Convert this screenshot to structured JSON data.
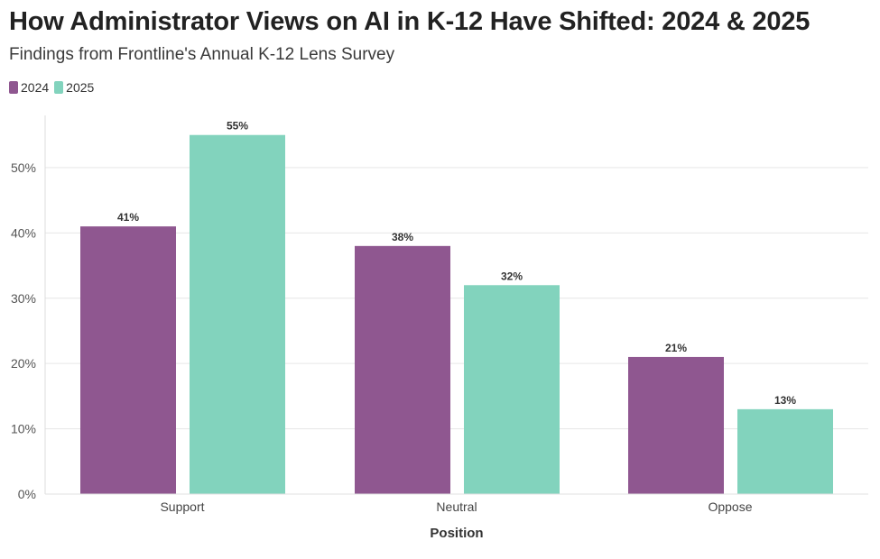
{
  "chart_data": {
    "type": "bar",
    "title": "How Administrator Views on AI in K-12 Have Shifted: 2024 & 2025",
    "subtitle": "Findings from Frontline's Annual K-12 Lens Survey",
    "xlabel": "Position",
    "ylabel": "",
    "categories": [
      "Support",
      "Neutral",
      "Oppose"
    ],
    "series": [
      {
        "name": "2024",
        "color": "#8f5790",
        "values": [
          41,
          38,
          21
        ],
        "labels": [
          "41%",
          "38%",
          "21%"
        ]
      },
      {
        "name": "2025",
        "color": "#82d3bd",
        "values": [
          55,
          32,
          13
        ],
        "labels": [
          "55%",
          "32%",
          "13%"
        ]
      }
    ],
    "ylim": [
      0,
      58
    ],
    "yticks": [
      0,
      10,
      20,
      30,
      40,
      50
    ],
    "ytick_labels": [
      "0%",
      "10%",
      "20%",
      "30%",
      "40%",
      "50%"
    ],
    "grid": true,
    "legend_position": "top-left"
  }
}
